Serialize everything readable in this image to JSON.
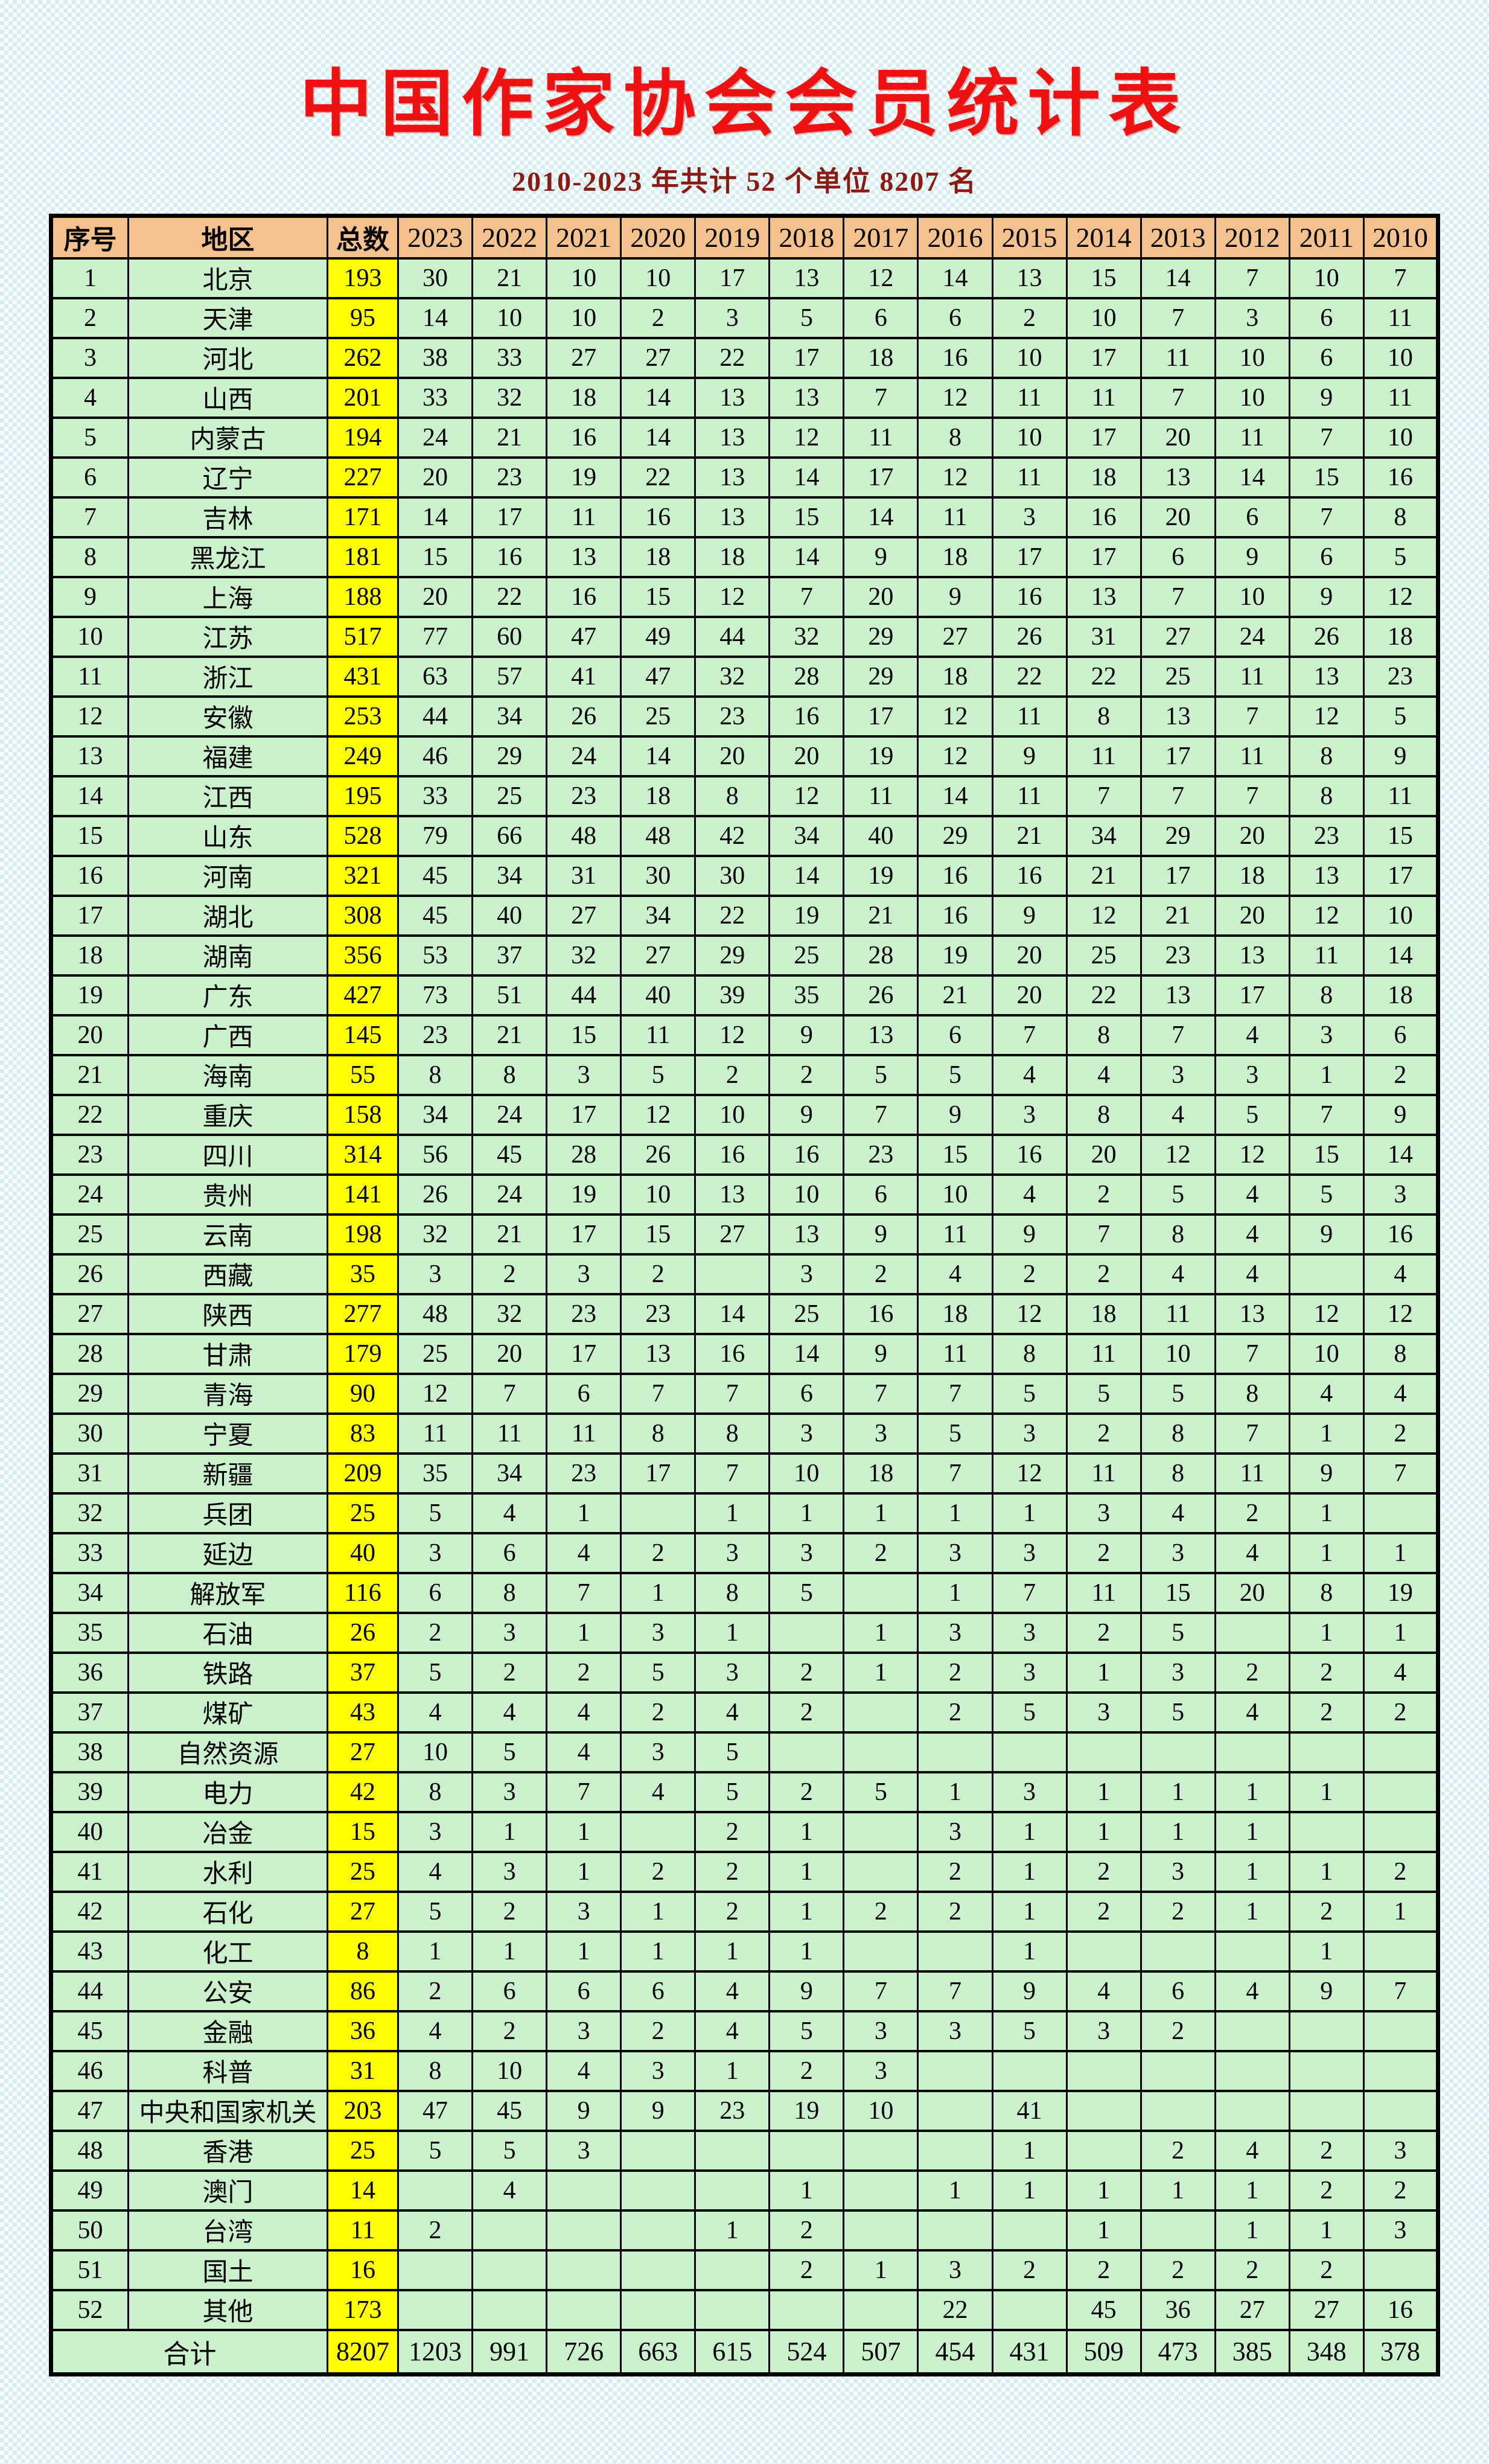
{
  "page": {
    "title": "中国作家协会会员统计表",
    "subtitle": "2010-2023 年共计 52 个单位 8207 名"
  },
  "colors": {
    "header_bg": "#F5C28E",
    "row_bg": "#CCF2CD",
    "total_col_bg": "#FFFF00",
    "title_red": "#ED1111",
    "subtitle_red": "#8B1A12",
    "border": "#000000",
    "background_checker": "#D2F0F3"
  },
  "table": {
    "columns": [
      "序号",
      "地区",
      "总数",
      "2023",
      "2022",
      "2021",
      "2020",
      "2019",
      "2018",
      "2017",
      "2016",
      "2015",
      "2014",
      "2013",
      "2012",
      "2011",
      "2010"
    ],
    "rows": [
      {
        "no": "1",
        "region": "北京",
        "total": "193",
        "values": [
          "30",
          "21",
          "10",
          "10",
          "17",
          "13",
          "12",
          "14",
          "13",
          "15",
          "14",
          "7",
          "10",
          "7"
        ]
      },
      {
        "no": "2",
        "region": "天津",
        "total": "95",
        "values": [
          "14",
          "10",
          "10",
          "2",
          "3",
          "5",
          "6",
          "6",
          "2",
          "10",
          "7",
          "3",
          "6",
          "11"
        ]
      },
      {
        "no": "3",
        "region": "河北",
        "total": "262",
        "values": [
          "38",
          "33",
          "27",
          "27",
          "22",
          "17",
          "18",
          "16",
          "10",
          "17",
          "11",
          "10",
          "6",
          "10"
        ]
      },
      {
        "no": "4",
        "region": "山西",
        "total": "201",
        "values": [
          "33",
          "32",
          "18",
          "14",
          "13",
          "13",
          "7",
          "12",
          "11",
          "11",
          "7",
          "10",
          "9",
          "11"
        ]
      },
      {
        "no": "5",
        "region": "内蒙古",
        "total": "194",
        "values": [
          "24",
          "21",
          "16",
          "14",
          "13",
          "12",
          "11",
          "8",
          "10",
          "17",
          "20",
          "11",
          "7",
          "10"
        ]
      },
      {
        "no": "6",
        "region": "辽宁",
        "total": "227",
        "values": [
          "20",
          "23",
          "19",
          "22",
          "13",
          "14",
          "17",
          "12",
          "11",
          "18",
          "13",
          "14",
          "15",
          "16"
        ]
      },
      {
        "no": "7",
        "region": "吉林",
        "total": "171",
        "values": [
          "14",
          "17",
          "11",
          "16",
          "13",
          "15",
          "14",
          "11",
          "3",
          "16",
          "20",
          "6",
          "7",
          "8"
        ]
      },
      {
        "no": "8",
        "region": "黑龙江",
        "total": "181",
        "values": [
          "15",
          "16",
          "13",
          "18",
          "18",
          "14",
          "9",
          "18",
          "17",
          "17",
          "6",
          "9",
          "6",
          "5"
        ]
      },
      {
        "no": "9",
        "region": "上海",
        "total": "188",
        "values": [
          "20",
          "22",
          "16",
          "15",
          "12",
          "7",
          "20",
          "9",
          "16",
          "13",
          "7",
          "10",
          "9",
          "12"
        ]
      },
      {
        "no": "10",
        "region": "江苏",
        "total": "517",
        "values": [
          "77",
          "60",
          "47",
          "49",
          "44",
          "32",
          "29",
          "27",
          "26",
          "31",
          "27",
          "24",
          "26",
          "18"
        ]
      },
      {
        "no": "11",
        "region": "浙江",
        "total": "431",
        "values": [
          "63",
          "57",
          "41",
          "47",
          "32",
          "28",
          "29",
          "18",
          "22",
          "22",
          "25",
          "11",
          "13",
          "23"
        ]
      },
      {
        "no": "12",
        "region": "安徽",
        "total": "253",
        "values": [
          "44",
          "34",
          "26",
          "25",
          "23",
          "16",
          "17",
          "12",
          "11",
          "8",
          "13",
          "7",
          "12",
          "5"
        ]
      },
      {
        "no": "13",
        "region": "福建",
        "total": "249",
        "values": [
          "46",
          "29",
          "24",
          "14",
          "20",
          "20",
          "19",
          "12",
          "9",
          "11",
          "17",
          "11",
          "8",
          "9"
        ]
      },
      {
        "no": "14",
        "region": "江西",
        "total": "195",
        "values": [
          "33",
          "25",
          "23",
          "18",
          "8",
          "12",
          "11",
          "14",
          "11",
          "7",
          "7",
          "7",
          "8",
          "11"
        ]
      },
      {
        "no": "15",
        "region": "山东",
        "total": "528",
        "values": [
          "79",
          "66",
          "48",
          "48",
          "42",
          "34",
          "40",
          "29",
          "21",
          "34",
          "29",
          "20",
          "23",
          "15"
        ]
      },
      {
        "no": "16",
        "region": "河南",
        "total": "321",
        "values": [
          "45",
          "34",
          "31",
          "30",
          "30",
          "14",
          "19",
          "16",
          "16",
          "21",
          "17",
          "18",
          "13",
          "17"
        ]
      },
      {
        "no": "17",
        "region": "湖北",
        "total": "308",
        "values": [
          "45",
          "40",
          "27",
          "34",
          "22",
          "19",
          "21",
          "16",
          "9",
          "12",
          "21",
          "20",
          "12",
          "10"
        ]
      },
      {
        "no": "18",
        "region": "湖南",
        "total": "356",
        "values": [
          "53",
          "37",
          "32",
          "27",
          "29",
          "25",
          "28",
          "19",
          "20",
          "25",
          "23",
          "13",
          "11",
          "14"
        ]
      },
      {
        "no": "19",
        "region": "广东",
        "total": "427",
        "values": [
          "73",
          "51",
          "44",
          "40",
          "39",
          "35",
          "26",
          "21",
          "20",
          "22",
          "13",
          "17",
          "8",
          "18"
        ]
      },
      {
        "no": "20",
        "region": "广西",
        "total": "145",
        "values": [
          "23",
          "21",
          "15",
          "11",
          "12",
          "9",
          "13",
          "6",
          "7",
          "8",
          "7",
          "4",
          "3",
          "6"
        ]
      },
      {
        "no": "21",
        "region": "海南",
        "total": "55",
        "values": [
          "8",
          "8",
          "3",
          "5",
          "2",
          "2",
          "5",
          "5",
          "4",
          "4",
          "3",
          "3",
          "1",
          "2"
        ]
      },
      {
        "no": "22",
        "region": "重庆",
        "total": "158",
        "values": [
          "34",
          "24",
          "17",
          "12",
          "10",
          "9",
          "7",
          "9",
          "3",
          "8",
          "4",
          "5",
          "7",
          "9"
        ]
      },
      {
        "no": "23",
        "region": "四川",
        "total": "314",
        "values": [
          "56",
          "45",
          "28",
          "26",
          "16",
          "16",
          "23",
          "15",
          "16",
          "20",
          "12",
          "12",
          "15",
          "14"
        ]
      },
      {
        "no": "24",
        "region": "贵州",
        "total": "141",
        "values": [
          "26",
          "24",
          "19",
          "10",
          "13",
          "10",
          "6",
          "10",
          "4",
          "2",
          "5",
          "4",
          "5",
          "3"
        ]
      },
      {
        "no": "25",
        "region": "云南",
        "total": "198",
        "values": [
          "32",
          "21",
          "17",
          "15",
          "27",
          "13",
          "9",
          "11",
          "9",
          "7",
          "8",
          "4",
          "9",
          "16"
        ]
      },
      {
        "no": "26",
        "region": "西藏",
        "total": "35",
        "values": [
          "3",
          "2",
          "3",
          "2",
          "",
          "3",
          "2",
          "4",
          "2",
          "2",
          "4",
          "4",
          "",
          "4"
        ]
      },
      {
        "no": "27",
        "region": "陕西",
        "total": "277",
        "values": [
          "48",
          "32",
          "23",
          "23",
          "14",
          "25",
          "16",
          "18",
          "12",
          "18",
          "11",
          "13",
          "12",
          "12"
        ]
      },
      {
        "no": "28",
        "region": "甘肃",
        "total": "179",
        "values": [
          "25",
          "20",
          "17",
          "13",
          "16",
          "14",
          "9",
          "11",
          "8",
          "11",
          "10",
          "7",
          "10",
          "8"
        ]
      },
      {
        "no": "29",
        "region": "青海",
        "total": "90",
        "values": [
          "12",
          "7",
          "6",
          "7",
          "7",
          "6",
          "7",
          "7",
          "5",
          "5",
          "5",
          "8",
          "4",
          "4"
        ]
      },
      {
        "no": "30",
        "region": "宁夏",
        "total": "83",
        "values": [
          "11",
          "11",
          "11",
          "8",
          "8",
          "3",
          "3",
          "5",
          "3",
          "2",
          "8",
          "7",
          "1",
          "2"
        ]
      },
      {
        "no": "31",
        "region": "新疆",
        "total": "209",
        "values": [
          "35",
          "34",
          "23",
          "17",
          "7",
          "10",
          "18",
          "7",
          "12",
          "11",
          "8",
          "11",
          "9",
          "7"
        ]
      },
      {
        "no": "32",
        "region": "兵团",
        "total": "25",
        "values": [
          "5",
          "4",
          "1",
          "",
          "1",
          "1",
          "1",
          "1",
          "1",
          "3",
          "4",
          "2",
          "1",
          ""
        ]
      },
      {
        "no": "33",
        "region": "延边",
        "total": "40",
        "values": [
          "3",
          "6",
          "4",
          "2",
          "3",
          "3",
          "2",
          "3",
          "3",
          "2",
          "3",
          "4",
          "1",
          "1"
        ]
      },
      {
        "no": "34",
        "region": "解放军",
        "total": "116",
        "values": [
          "6",
          "8",
          "7",
          "1",
          "8",
          "5",
          "",
          "1",
          "7",
          "11",
          "15",
          "20",
          "8",
          "19"
        ]
      },
      {
        "no": "35",
        "region": "石油",
        "total": "26",
        "values": [
          "2",
          "3",
          "1",
          "3",
          "1",
          "",
          "1",
          "3",
          "3",
          "2",
          "5",
          "",
          "1",
          "1"
        ]
      },
      {
        "no": "36",
        "region": "铁路",
        "total": "37",
        "values": [
          "5",
          "2",
          "2",
          "5",
          "3",
          "2",
          "1",
          "2",
          "3",
          "1",
          "3",
          "2",
          "2",
          "4"
        ]
      },
      {
        "no": "37",
        "region": "煤矿",
        "total": "43",
        "values": [
          "4",
          "4",
          "4",
          "2",
          "4",
          "2",
          "",
          "2",
          "5",
          "3",
          "5",
          "4",
          "2",
          "2"
        ]
      },
      {
        "no": "38",
        "region": "自然资源",
        "total": "27",
        "values": [
          "10",
          "5",
          "4",
          "3",
          "5",
          "",
          "",
          "",
          "",
          "",
          "",
          "",
          "",
          ""
        ]
      },
      {
        "no": "39",
        "region": "电力",
        "total": "42",
        "values": [
          "8",
          "3",
          "7",
          "4",
          "5",
          "2",
          "5",
          "1",
          "3",
          "1",
          "1",
          "1",
          "1",
          ""
        ]
      },
      {
        "no": "40",
        "region": "冶金",
        "total": "15",
        "values": [
          "3",
          "1",
          "1",
          "",
          "2",
          "1",
          "",
          "3",
          "1",
          "1",
          "1",
          "1",
          "",
          ""
        ]
      },
      {
        "no": "41",
        "region": "水利",
        "total": "25",
        "values": [
          "4",
          "3",
          "1",
          "2",
          "2",
          "1",
          "",
          "2",
          "1",
          "2",
          "3",
          "1",
          "1",
          "2"
        ]
      },
      {
        "no": "42",
        "region": "石化",
        "total": "27",
        "values": [
          "5",
          "2",
          "3",
          "1",
          "2",
          "1",
          "2",
          "2",
          "1",
          "2",
          "2",
          "1",
          "2",
          "1"
        ]
      },
      {
        "no": "43",
        "region": "化工",
        "total": "8",
        "values": [
          "1",
          "1",
          "1",
          "1",
          "1",
          "1",
          "",
          "",
          "1",
          "",
          "",
          "",
          "1",
          ""
        ]
      },
      {
        "no": "44",
        "region": "公安",
        "total": "86",
        "values": [
          "2",
          "6",
          "6",
          "6",
          "4",
          "9",
          "7",
          "7",
          "9",
          "4",
          "6",
          "4",
          "9",
          "7"
        ]
      },
      {
        "no": "45",
        "region": "金融",
        "total": "36",
        "values": [
          "4",
          "2",
          "3",
          "2",
          "4",
          "5",
          "3",
          "3",
          "5",
          "3",
          "2",
          "",
          "",
          ""
        ]
      },
      {
        "no": "46",
        "region": "科普",
        "total": "31",
        "values": [
          "8",
          "10",
          "4",
          "3",
          "1",
          "2",
          "3",
          "",
          "",
          "",
          "",
          "",
          "",
          ""
        ]
      },
      {
        "no": "47",
        "region": "中央和国家机关",
        "total": "203",
        "values": [
          "47",
          "45",
          "9",
          "9",
          "23",
          "19",
          "10",
          "",
          "41",
          "",
          "",
          "",
          "",
          ""
        ]
      },
      {
        "no": "48",
        "region": "香港",
        "total": "25",
        "values": [
          "5",
          "5",
          "3",
          "",
          "",
          "",
          "",
          "",
          "1",
          "",
          "2",
          "4",
          "2",
          "3"
        ]
      },
      {
        "no": "49",
        "region": "澳门",
        "total": "14",
        "values": [
          "",
          "4",
          "",
          "",
          "",
          "1",
          "",
          "1",
          "1",
          "1",
          "1",
          "1",
          "2",
          "2"
        ]
      },
      {
        "no": "50",
        "region": "台湾",
        "total": "11",
        "values": [
          "2",
          "",
          "",
          "",
          "1",
          "2",
          "",
          "",
          "",
          "1",
          "",
          "1",
          "1",
          "3"
        ]
      },
      {
        "no": "51",
        "region": "国土",
        "total": "16",
        "values": [
          "",
          "",
          "",
          "",
          "",
          "2",
          "1",
          "3",
          "2",
          "2",
          "2",
          "2",
          "2",
          ""
        ]
      },
      {
        "no": "52",
        "region": "其他",
        "total": "173",
        "values": [
          "",
          "",
          "",
          "",
          "",
          "",
          "",
          "22",
          "",
          "45",
          "36",
          "27",
          "27",
          "16"
        ]
      }
    ],
    "total_row": {
      "label": "合计",
      "total": "8207",
      "values": [
        "1203",
        "991",
        "726",
        "663",
        "615",
        "524",
        "507",
        "454",
        "431",
        "509",
        "473",
        "385",
        "348",
        "378"
      ]
    }
  }
}
